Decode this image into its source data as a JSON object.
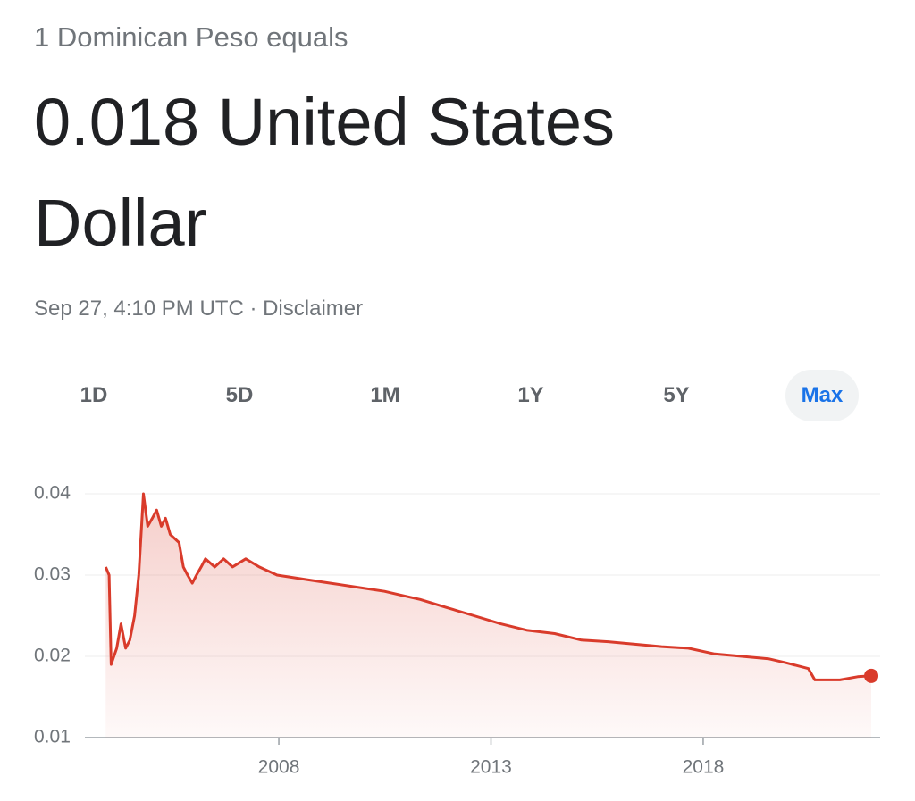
{
  "header": {
    "subtitle": "1 Dominican Peso equals",
    "title": "0.018 United States Dollar",
    "timestamp": "Sep 27, 4:10 PM UTC · Disclaimer"
  },
  "ranges": {
    "labels": [
      "1D",
      "5D",
      "1M",
      "1Y",
      "5Y",
      "Max"
    ],
    "selected": 5
  },
  "chart_data": {
    "type": "line",
    "color": "#d93b2b",
    "x": [
      2003.92,
      2004.0,
      2004.05,
      2004.18,
      2004.28,
      2004.39,
      2004.49,
      2004.6,
      2004.7,
      2004.81,
      2004.91,
      2005.02,
      2005.12,
      2005.23,
      2005.33,
      2005.44,
      2005.65,
      2005.75,
      2005.85,
      2005.96,
      2006.06,
      2006.17,
      2006.27,
      2006.49,
      2006.7,
      2006.91,
      2007.22,
      2007.54,
      2007.96,
      2008.59,
      2009.22,
      2009.85,
      2010.49,
      2010.91,
      2011.33,
      2011.96,
      2012.6,
      2013.23,
      2013.86,
      2014.5,
      2015.13,
      2015.76,
      2016.39,
      2017.02,
      2017.65,
      2018.27,
      2018.91,
      2019.54,
      2019.96,
      2020.48,
      2020.63,
      2021.22,
      2021.64,
      2021.96
    ],
    "values": [
      0.031,
      0.03,
      0.019,
      0.021,
      0.024,
      0.021,
      0.022,
      0.025,
      0.03,
      0.04,
      0.036,
      0.037,
      0.038,
      0.036,
      0.037,
      0.035,
      0.034,
      0.031,
      0.03,
      0.029,
      0.03,
      0.031,
      0.032,
      0.031,
      0.032,
      0.031,
      0.032,
      0.031,
      0.03,
      0.0295,
      0.029,
      0.0285,
      0.028,
      0.0275,
      0.027,
      0.026,
      0.025,
      0.024,
      0.0232,
      0.0228,
      0.022,
      0.0218,
      0.0215,
      0.0212,
      0.021,
      0.0203,
      0.02,
      0.0197,
      0.0192,
      0.0185,
      0.0171,
      0.0171,
      0.0175,
      0.0176
    ],
    "xlim": [
      2003.43,
      2022.17
    ],
    "xticks": [
      2008,
      2013,
      2018
    ],
    "ylim": [
      0.01,
      0.04
    ],
    "yticks": [
      0.01,
      0.02,
      0.03,
      0.04
    ],
    "grid": true
  }
}
